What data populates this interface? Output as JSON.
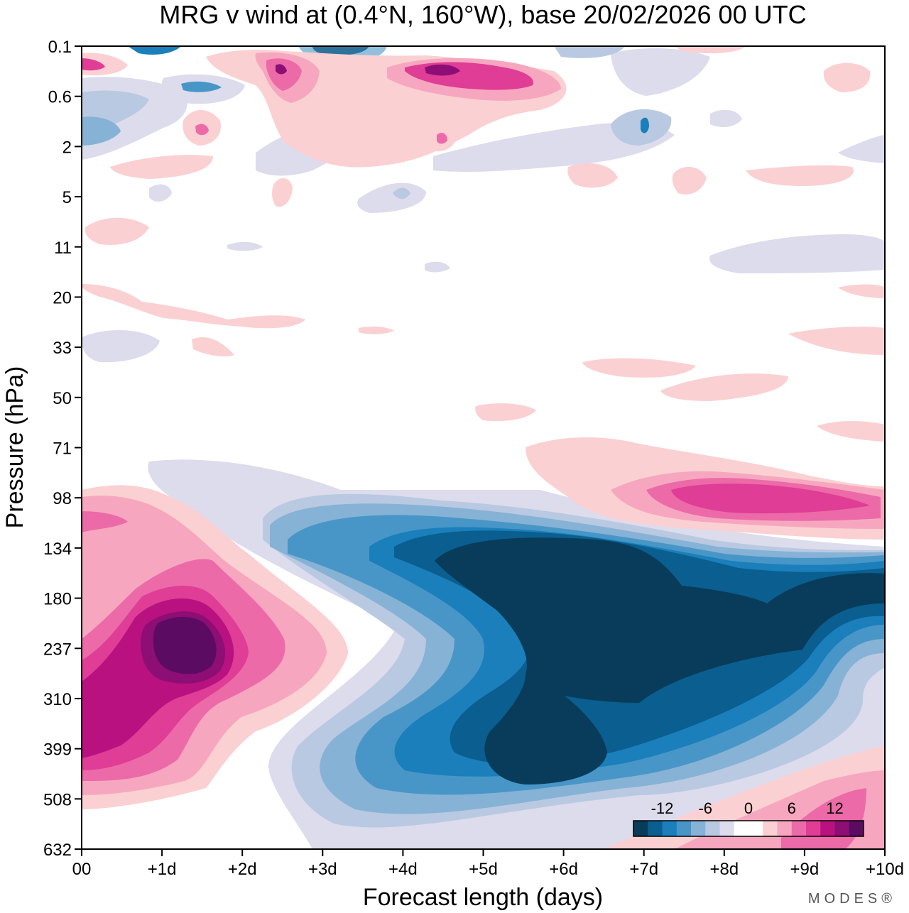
{
  "chart_data": {
    "type": "heatmap",
    "title": "MRG v wind at (0.4°N, 160°W),  base 20/02/2026  00 UTC",
    "xlabel": "Forecast length (days)",
    "ylabel": "Pressure (hPa)",
    "x_ticks": [
      "00",
      "+1d",
      "+2d",
      "+3d",
      "+4d",
      "+5d",
      "+6d",
      "+7d",
      "+8d",
      "+9d",
      "+10d"
    ],
    "y_ticks": [
      "0.1",
      "0.6",
      "2",
      "5",
      "11",
      "20",
      "33",
      "50",
      "71",
      "98",
      "134",
      "180",
      "237",
      "310",
      "399",
      "508",
      "632"
    ],
    "xlim": [
      0,
      10
    ],
    "ylim_top_hpa": 0.1,
    "ylim_bottom_hpa": 632,
    "colorbar": {
      "ticks": [
        "-12",
        "-6",
        "0",
        "6",
        "12"
      ],
      "levels": [
        -16,
        -14,
        -12,
        -10,
        -8,
        -6,
        -4,
        -2,
        0,
        2,
        4,
        6,
        8,
        10,
        12,
        14,
        16
      ],
      "colors": [
        "#083c5a",
        "#0a5e90",
        "#1a7fba",
        "#4896c7",
        "#86b2d6",
        "#b9c9e2",
        "#dcdcec",
        "#ffffff",
        "#ffffff",
        "#fbd0d3",
        "#f6a7bf",
        "#ec6aa8",
        "#df3d96",
        "#b9117f",
        "#8d0e75",
        "#5c0b63"
      ]
    },
    "features": [
      {
        "name": "upper-troposphere easterly-phase minimum",
        "x_day": 6.5,
        "pressure_hpa": 200,
        "v_ms": -16
      },
      {
        "name": "mid-troposphere lobe minimum",
        "x_day": 6.0,
        "pressure_hpa": 399,
        "v_ms": -16
      },
      {
        "name": "day-1 maximum",
        "x_day": 1.3,
        "pressure_hpa": 237,
        "v_ms": 16
      },
      {
        "name": "day-8 maximum",
        "x_day": 8.3,
        "pressure_hpa": 98,
        "v_ms": 11
      },
      {
        "name": "stratospheric maximum",
        "x_day": 4.7,
        "pressure_hpa": 0.4,
        "v_ms": 12
      }
    ]
  },
  "watermark": "MODES®"
}
